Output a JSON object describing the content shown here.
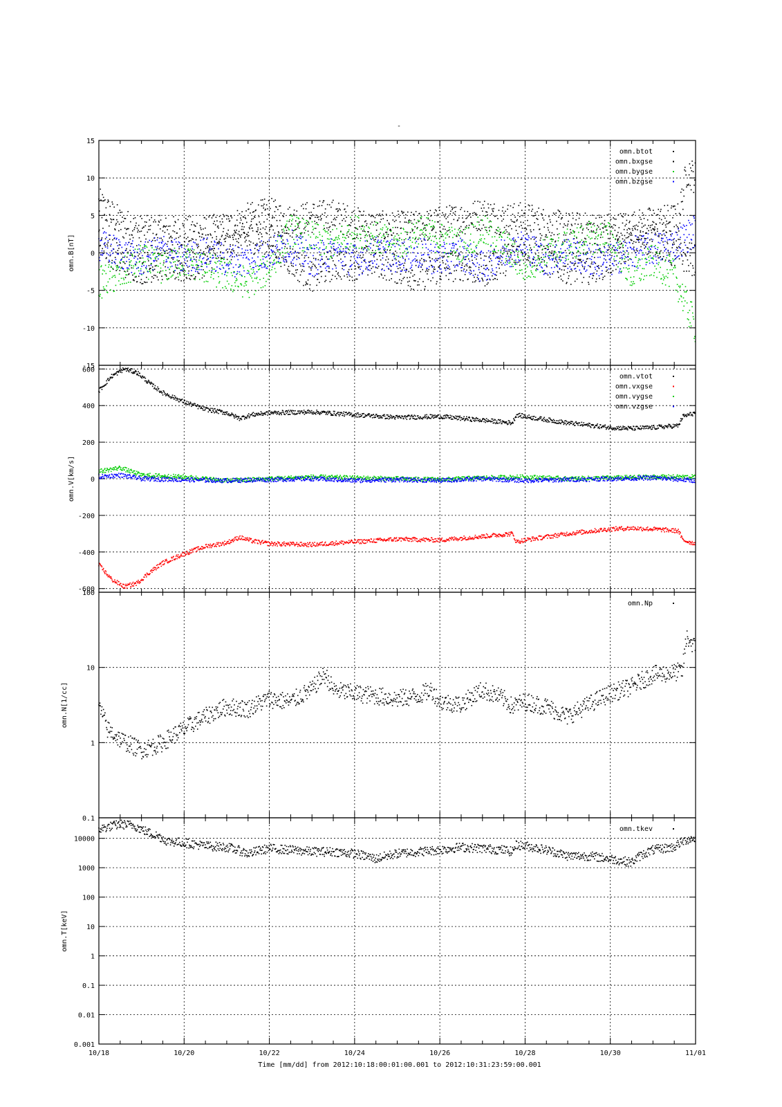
{
  "figure": {
    "title": "-",
    "xlabel": "Time [mm/dd]  from 2012:10:18:00:01:00.001  to  2012:10:31:23:59:00.001",
    "x_tick_labels": [
      "10/18",
      "10/20",
      "10/22",
      "10/24",
      "10/26",
      "10/28",
      "10/30",
      "11/01"
    ]
  },
  "chart_data": [
    {
      "type": "scatter",
      "ylabel": "omn.B[nT]",
      "ylim": [
        -15,
        15
      ],
      "yticks": [
        -15,
        -10,
        -5,
        0,
        5,
        10,
        15
      ],
      "legend_position": "top-right",
      "xlim": [
        0,
        14
      ],
      "x_unit": "days since 10/18",
      "series": [
        {
          "name": "omn.btot",
          "color": "#000000",
          "x": [
            0,
            0.5,
            1,
            1.5,
            2,
            2.5,
            3,
            3.5,
            4,
            4.5,
            5,
            5.5,
            6,
            6.5,
            7,
            7.5,
            8,
            8.5,
            9,
            9.5,
            10,
            10.5,
            11,
            11.5,
            12,
            12.5,
            13,
            13.3,
            13.6,
            13.8,
            14
          ],
          "y": [
            6.5,
            4,
            2.8,
            2.8,
            2.7,
            2.8,
            3.2,
            4.5,
            5.2,
            4.2,
            4.8,
            5,
            4,
            3.4,
            3.4,
            3.4,
            4,
            4.5,
            5.2,
            4.5,
            4.6,
            3.8,
            3.3,
            3.2,
            3.2,
            3.5,
            4,
            4.3,
            4.5,
            11,
            10
          ]
        },
        {
          "name": "omn.bxgse",
          "color": "#000000",
          "x": [
            0,
            0.5,
            1,
            1.5,
            2,
            2.5,
            3,
            3.5,
            4,
            4.5,
            5,
            5.5,
            6,
            6.5,
            7,
            7.5,
            8,
            8.5,
            9,
            9.5,
            10,
            10.5,
            11,
            11.5,
            12,
            12.5,
            13,
            13.5,
            14
          ],
          "y": [
            2,
            -1,
            -2,
            -1.5,
            -2,
            -1,
            1,
            2,
            2,
            -1,
            -3,
            -1.5,
            -1.5,
            -1,
            -2,
            -3,
            -2,
            -1.5,
            -2.5,
            -1,
            1,
            -1,
            -2,
            -2,
            -1,
            1.5,
            2,
            0,
            -1
          ]
        },
        {
          "name": "omn.bygse",
          "color": "#00cc00",
          "x": [
            0,
            0.5,
            1,
            1.5,
            2,
            2.5,
            3,
            3.5,
            4,
            4.5,
            5,
            5.5,
            6,
            6.5,
            7,
            7.5,
            8,
            8.5,
            9,
            9.5,
            10,
            10.5,
            11,
            11.5,
            12,
            12.5,
            13,
            13.5,
            14
          ],
          "y": [
            -4,
            -3,
            -1,
            -2,
            -1,
            -2,
            -3,
            -4,
            -2,
            3,
            2,
            1,
            3,
            2,
            1,
            3,
            2,
            1,
            3,
            1,
            -2,
            0,
            1,
            2,
            2,
            -3,
            -1,
            -3,
            -10
          ]
        },
        {
          "name": "omn.bzgse",
          "color": "#0000ff",
          "x": [
            0,
            0.5,
            1,
            1.5,
            2,
            2.5,
            3,
            3.5,
            4,
            4.5,
            5,
            5.5,
            6,
            6.5,
            7,
            7.5,
            8,
            8.5,
            9,
            9.5,
            10,
            10.5,
            11,
            11.5,
            12,
            12.5,
            13,
            13.5,
            14
          ],
          "y": [
            1,
            0,
            -1,
            0.5,
            -1,
            0,
            -1,
            -1,
            0,
            1,
            -1,
            0,
            -1,
            0,
            -0.5,
            0,
            -1,
            0,
            -2,
            0,
            1,
            -1,
            0,
            -1,
            -1,
            0,
            0.5,
            1,
            3
          ]
        }
      ]
    },
    {
      "type": "scatter",
      "ylabel": "omn.V[km/s]",
      "ylim": [
        -620,
        620
      ],
      "yticks": [
        -600,
        -400,
        -200,
        0,
        200,
        400,
        600
      ],
      "legend_position": "top-right",
      "xlim": [
        0,
        14
      ],
      "x_unit": "days since 10/18",
      "series": [
        {
          "name": "omn.vtot",
          "color": "#000000",
          "x": [
            0,
            0.3,
            0.6,
            0.9,
            1.2,
            1.5,
            2,
            2.5,
            3,
            3.3,
            3.6,
            4,
            5,
            6,
            7,
            8,
            9,
            9.7,
            9.8,
            10,
            11,
            12,
            12.5,
            13,
            13.6,
            13.7,
            14
          ],
          "y": [
            480,
            560,
            600,
            580,
            520,
            470,
            420,
            380,
            360,
            330,
            350,
            360,
            365,
            350,
            335,
            340,
            320,
            305,
            350,
            340,
            305,
            280,
            275,
            280,
            290,
            340,
            360
          ]
        },
        {
          "name": "omn.vxgse",
          "color": "#ff0000",
          "x": [
            0,
            0.3,
            0.6,
            0.9,
            1.2,
            1.5,
            2,
            2.5,
            3,
            3.3,
            3.6,
            4,
            5,
            6,
            7,
            8,
            9,
            9.7,
            9.8,
            10,
            11,
            12,
            12.5,
            13,
            13.6,
            13.7,
            14
          ],
          "y": [
            -470,
            -550,
            -590,
            -570,
            -510,
            -460,
            -410,
            -370,
            -350,
            -320,
            -340,
            -355,
            -360,
            -345,
            -330,
            -335,
            -315,
            -300,
            -345,
            -335,
            -300,
            -275,
            -270,
            -275,
            -285,
            -335,
            -355
          ]
        },
        {
          "name": "omn.vygse",
          "color": "#00cc00",
          "x": [
            0,
            0.5,
            1,
            2,
            3,
            4,
            5,
            6,
            7,
            8,
            9,
            10,
            11,
            12,
            13,
            14
          ],
          "y": [
            40,
            60,
            20,
            10,
            -10,
            0,
            10,
            5,
            0,
            -5,
            5,
            10,
            0,
            5,
            10,
            10
          ]
        },
        {
          "name": "omn.vzgse",
          "color": "#0000ff",
          "x": [
            0,
            0.5,
            1,
            2,
            3,
            4,
            5,
            6,
            7,
            8,
            9,
            10,
            11,
            12,
            13,
            14
          ],
          "y": [
            10,
            20,
            0,
            -5,
            -10,
            -5,
            0,
            -10,
            -5,
            -10,
            0,
            -10,
            -5,
            0,
            5,
            -10
          ]
        }
      ]
    },
    {
      "type": "scatter",
      "ylabel": "omn.N[1/cc]",
      "ylim": [
        0.1,
        100
      ],
      "yscale": "log",
      "yticks": [
        0.1,
        1,
        10,
        100
      ],
      "legend_position": "top-right",
      "xlim": [
        0,
        14
      ],
      "x_unit": "days since 10/18",
      "series": [
        {
          "name": "omn.Np",
          "color": "#000000",
          "x": [
            0,
            0.2,
            0.5,
            0.8,
            1,
            1.3,
            1.5,
            1.7,
            2,
            2.5,
            3,
            3.5,
            4,
            4.5,
            5,
            5.3,
            5.5,
            6,
            6.5,
            7,
            7.5,
            7.8,
            8,
            8.5,
            9,
            9.5,
            9.7,
            9.8,
            10,
            10.5,
            10.8,
            11,
            11.5,
            12,
            12.5,
            13,
            13.5,
            13.7,
            13.8,
            14
          ],
          "y": [
            3,
            1.5,
            1.1,
            0.9,
            0.8,
            0.9,
            1,
            1.2,
            1.5,
            2.2,
            3,
            2.8,
            3.8,
            3.5,
            5,
            8,
            5,
            4.5,
            4.2,
            3.8,
            4.2,
            5,
            3.5,
            3.2,
            5,
            3.8,
            3,
            3.2,
            3.5,
            3,
            2.5,
            2.2,
            3.2,
            4.5,
            5.5,
            8,
            8.5,
            9,
            25,
            18
          ]
        }
      ]
    },
    {
      "type": "scatter",
      "ylabel": "omn.T[keV]",
      "ylim": [
        0.001,
        50000
      ],
      "yscale": "log",
      "yticks": [
        0.001,
        0.01,
        0.1,
        1,
        10,
        100,
        1000,
        10000
      ],
      "legend_position": "top-right",
      "xlim": [
        0,
        14
      ],
      "x_unit": "days since 10/18",
      "series": [
        {
          "name": "omn.tkev",
          "color": "#000000",
          "x": [
            0,
            0.5,
            0.8,
            1,
            1.2,
            1.5,
            1.6,
            2,
            2.5,
            3,
            3.5,
            4,
            4.5,
            5,
            5.5,
            6,
            6.5,
            7,
            7.5,
            8,
            8.5,
            9,
            9.5,
            9.7,
            9.8,
            10,
            10.5,
            11,
            11.5,
            12,
            12.5,
            13,
            13.5,
            13.8,
            14
          ],
          "y": [
            20000,
            30000,
            28000,
            20000,
            15000,
            10000,
            8000,
            7000,
            5500,
            5000,
            3000,
            4500,
            4000,
            3500,
            3500,
            3000,
            2000,
            3000,
            3500,
            4000,
            5000,
            4500,
            4000,
            3500,
            6000,
            5500,
            4000,
            2500,
            2500,
            2000,
            1500,
            4000,
            5000,
            9000,
            10000
          ]
        }
      ]
    }
  ]
}
